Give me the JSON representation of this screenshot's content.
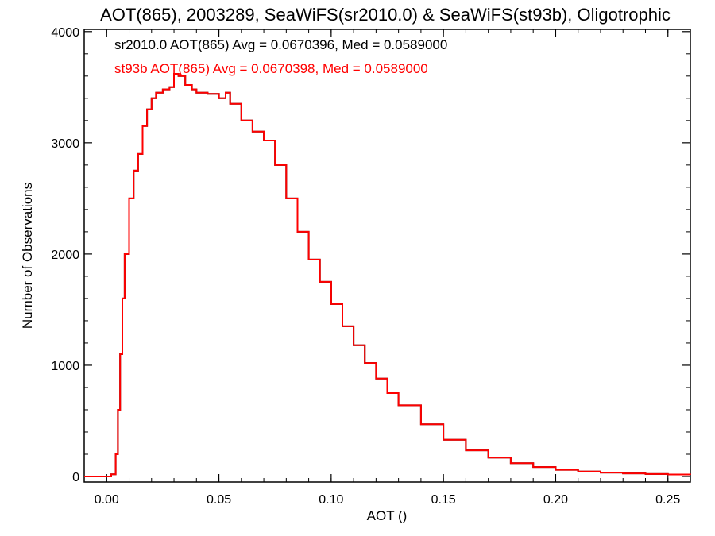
{
  "chart_data": {
    "type": "line",
    "title": "AOT(865), 2003289, SeaWiFS(sr2010.0) & SeaWiFS(st93b), Oligotrophic",
    "xlabel": "AOT ()",
    "ylabel": "Number of Observations",
    "xlim": [
      -0.01,
      0.26
    ],
    "ylim": [
      -50,
      4020
    ],
    "x_ticks": [
      0.0,
      0.05,
      0.1,
      0.15,
      0.2,
      0.25
    ],
    "x_tick_labels": [
      "0.00",
      "0.05",
      "0.10",
      "0.15",
      "0.20",
      "0.25"
    ],
    "y_ticks": [
      0,
      1000,
      2000,
      3000,
      4000
    ],
    "y_tick_labels": [
      "0",
      "1000",
      "2000",
      "3000",
      "4000"
    ],
    "grid": false,
    "annotations": [
      {
        "text": "sr2010.0 AOT(865) Avg = 0.0670396, Med = 0.0589000",
        "color": "#000000"
      },
      {
        "text": "st93b AOT(865) Avg = 0.0670398, Med = 0.0589000",
        "color": "#ff0000"
      }
    ],
    "series": [
      {
        "name": "sr2010.0",
        "color": "#000000",
        "x": [
          -0.01,
          0.002,
          0.004,
          0.005,
          0.006,
          0.007,
          0.008,
          0.01,
          0.012,
          0.014,
          0.016,
          0.018,
          0.02,
          0.022,
          0.025,
          0.028,
          0.03,
          0.032,
          0.035,
          0.038,
          0.04,
          0.045,
          0.05,
          0.053,
          0.055,
          0.06,
          0.065,
          0.07,
          0.075,
          0.08,
          0.085,
          0.09,
          0.095,
          0.1,
          0.105,
          0.11,
          0.115,
          0.12,
          0.125,
          0.13,
          0.14,
          0.15,
          0.16,
          0.17,
          0.18,
          0.19,
          0.2,
          0.21,
          0.22,
          0.23,
          0.24,
          0.25,
          0.26
        ],
        "y": [
          0,
          20,
          200,
          600,
          1100,
          1600,
          2000,
          2500,
          2750,
          2900,
          3150,
          3300,
          3400,
          3450,
          3480,
          3500,
          3620,
          3600,
          3520,
          3480,
          3450,
          3440,
          3400,
          3450,
          3350,
          3200,
          3100,
          3020,
          2800,
          2500,
          2200,
          1950,
          1750,
          1550,
          1350,
          1180,
          1020,
          880,
          750,
          640,
          470,
          330,
          235,
          170,
          120,
          85,
          60,
          45,
          35,
          28,
          22,
          18,
          15
        ]
      },
      {
        "name": "st93b",
        "color": "#ff0000",
        "x": [
          -0.01,
          0.002,
          0.004,
          0.005,
          0.006,
          0.007,
          0.008,
          0.01,
          0.012,
          0.014,
          0.016,
          0.018,
          0.02,
          0.022,
          0.025,
          0.028,
          0.03,
          0.032,
          0.035,
          0.038,
          0.04,
          0.045,
          0.05,
          0.053,
          0.055,
          0.06,
          0.065,
          0.07,
          0.075,
          0.08,
          0.085,
          0.09,
          0.095,
          0.1,
          0.105,
          0.11,
          0.115,
          0.12,
          0.125,
          0.13,
          0.14,
          0.15,
          0.16,
          0.17,
          0.18,
          0.19,
          0.2,
          0.21,
          0.22,
          0.23,
          0.24,
          0.25,
          0.26
        ],
        "y": [
          0,
          20,
          200,
          600,
          1100,
          1600,
          2000,
          2500,
          2750,
          2900,
          3150,
          3300,
          3400,
          3450,
          3480,
          3500,
          3620,
          3600,
          3520,
          3480,
          3450,
          3440,
          3400,
          3450,
          3350,
          3200,
          3100,
          3020,
          2800,
          2500,
          2200,
          1950,
          1750,
          1550,
          1350,
          1180,
          1020,
          880,
          750,
          640,
          470,
          330,
          235,
          170,
          120,
          85,
          60,
          45,
          35,
          28,
          22,
          18,
          15
        ]
      }
    ]
  }
}
